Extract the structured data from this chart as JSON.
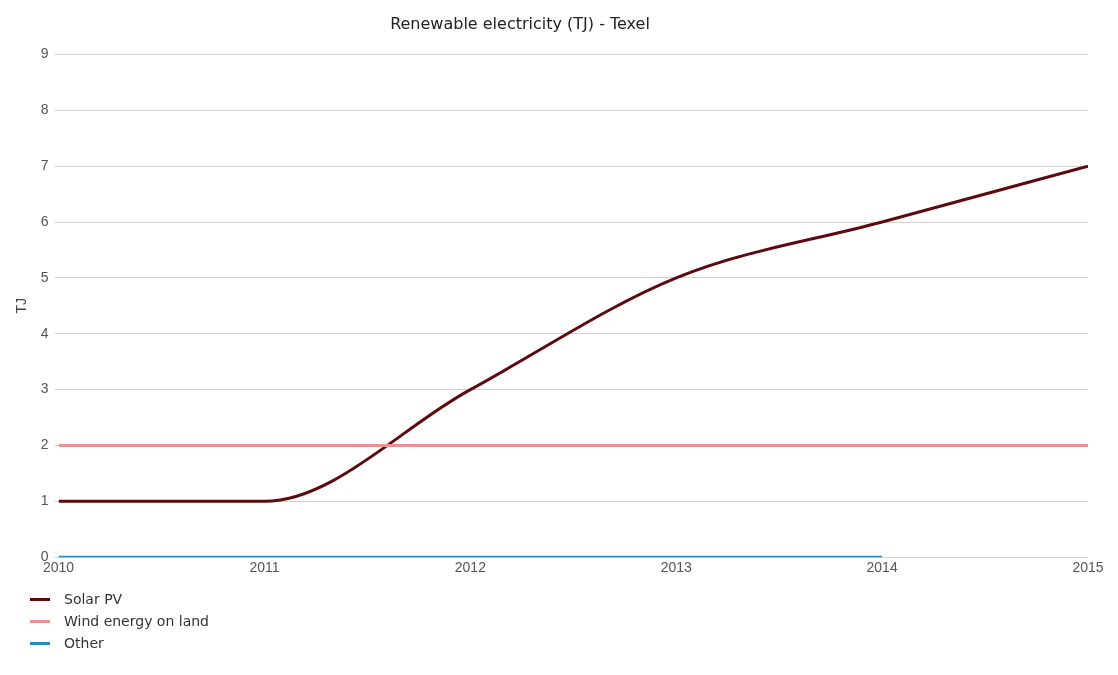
{
  "chart_data": {
    "type": "line",
    "title": "Renewable electricity (TJ) - Texel",
    "ylabel": "TJ",
    "x": [
      2010,
      2011,
      2012,
      2013,
      2014,
      2015
    ],
    "series": [
      {
        "name": "Solar PV",
        "color": "#5c0a0e",
        "values": [
          1,
          1,
          3,
          5,
          6,
          7
        ]
      },
      {
        "name": "Wind energy on land",
        "color": "#ee9090",
        "values": [
          2,
          2,
          2,
          2,
          2,
          2
        ]
      },
      {
        "name": "Other",
        "color": "#2b8cc4",
        "values": [
          0,
          0,
          0,
          0,
          0,
          null
        ]
      }
    ],
    "xlim": [
      2010,
      2015
    ],
    "xticks": [
      2010,
      2011,
      2012,
      2013,
      2014,
      2015
    ],
    "ylim": [
      0,
      9
    ],
    "yticks": [
      0,
      1,
      2,
      3,
      4,
      5,
      6,
      7,
      8,
      9
    ],
    "grid": "y",
    "legend": "bottom left",
    "marker": "none",
    "line_style": "solid"
  }
}
